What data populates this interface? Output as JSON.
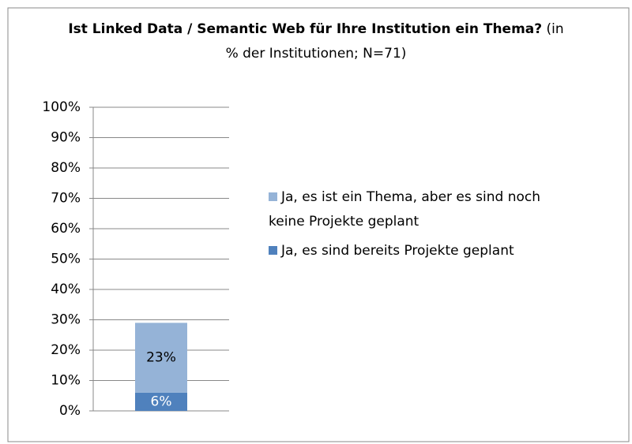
{
  "chart_data": {
    "type": "stacked_bar",
    "title": "Ist Linked Data / Semantic Web für Ihre Institution ein Thema?",
    "subtitle": "(in % der Institutionen; N=71)",
    "categories": [
      null
    ],
    "series": [
      {
        "name": "Ja, es sind bereits Projekte geplant",
        "color": "#4f81bd",
        "values": [
          6
        ],
        "value_labels": [
          "6%"
        ],
        "label_color": "#ffffff"
      },
      {
        "name": "Ja, es ist ein Thema, aber es sind noch keine Projekte geplant",
        "color": "#95b3d7",
        "values": [
          23
        ],
        "value_labels": [
          "23%"
        ],
        "label_color": "#000000"
      }
    ],
    "ylim": [
      0,
      100
    ],
    "yticks": [
      {
        "value": 0,
        "label": "0%"
      },
      {
        "value": 10,
        "label": "10%"
      },
      {
        "value": 20,
        "label": "20%"
      },
      {
        "value": 30,
        "label": "30%"
      },
      {
        "value": 40,
        "label": "40%"
      },
      {
        "value": 50,
        "label": "50%"
      },
      {
        "value": 60,
        "label": "60%"
      },
      {
        "value": 70,
        "label": "70%"
      },
      {
        "value": 80,
        "label": "80%"
      },
      {
        "value": 90,
        "label": "90%"
      },
      {
        "value": 100,
        "label": "100%"
      }
    ],
    "grid": true,
    "legend": "right"
  }
}
